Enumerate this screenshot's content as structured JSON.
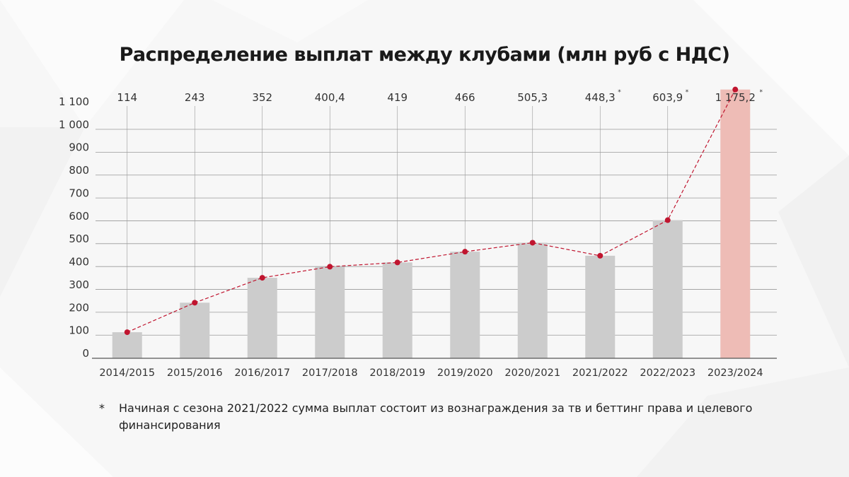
{
  "chart_data": {
    "type": "bar",
    "title": "Распределение выплат между клубами (млн руб с НДС)",
    "categories": [
      "2014/2015",
      "2015/2016",
      "2016/2017",
      "2017/2018",
      "2018/2019",
      "2019/2020",
      "2020/2021",
      "2021/2022",
      "2022/2023",
      "2023/2024"
    ],
    "values": [
      114,
      243,
      352,
      400.4,
      419,
      466,
      505.3,
      448.3,
      603.9,
      1175.2
    ],
    "value_labels": [
      "114",
      "243",
      "352",
      "400,4",
      "419",
      "466",
      "505,3",
      "448,3",
      "603,9",
      "1 175,2"
    ],
    "footnote_marked": [
      false,
      false,
      false,
      false,
      false,
      false,
      false,
      true,
      true,
      true
    ],
    "y_tick_labels": [
      "0",
      "100",
      "200",
      "300",
      "400",
      "500",
      "600",
      "700",
      "800",
      "900",
      "1 000",
      "1 100"
    ],
    "y_tick_values": [
      0,
      100,
      200,
      300,
      400,
      500,
      600,
      700,
      800,
      900,
      1000,
      1100
    ],
    "xlabel": "",
    "ylabel": "",
    "grid": true,
    "line_overlay": true,
    "colors": {
      "bar": "#cccccc",
      "highlight_bar": "#eebcb6",
      "line": "#c0152f",
      "grid": "#999999",
      "axis": "#555555"
    }
  },
  "footnote": {
    "mark": "*",
    "text": "Начиная с сезона 2021/2022 сумма выплат состоит из вознаграждения за тв и беттинг права и целевого финансирования"
  }
}
